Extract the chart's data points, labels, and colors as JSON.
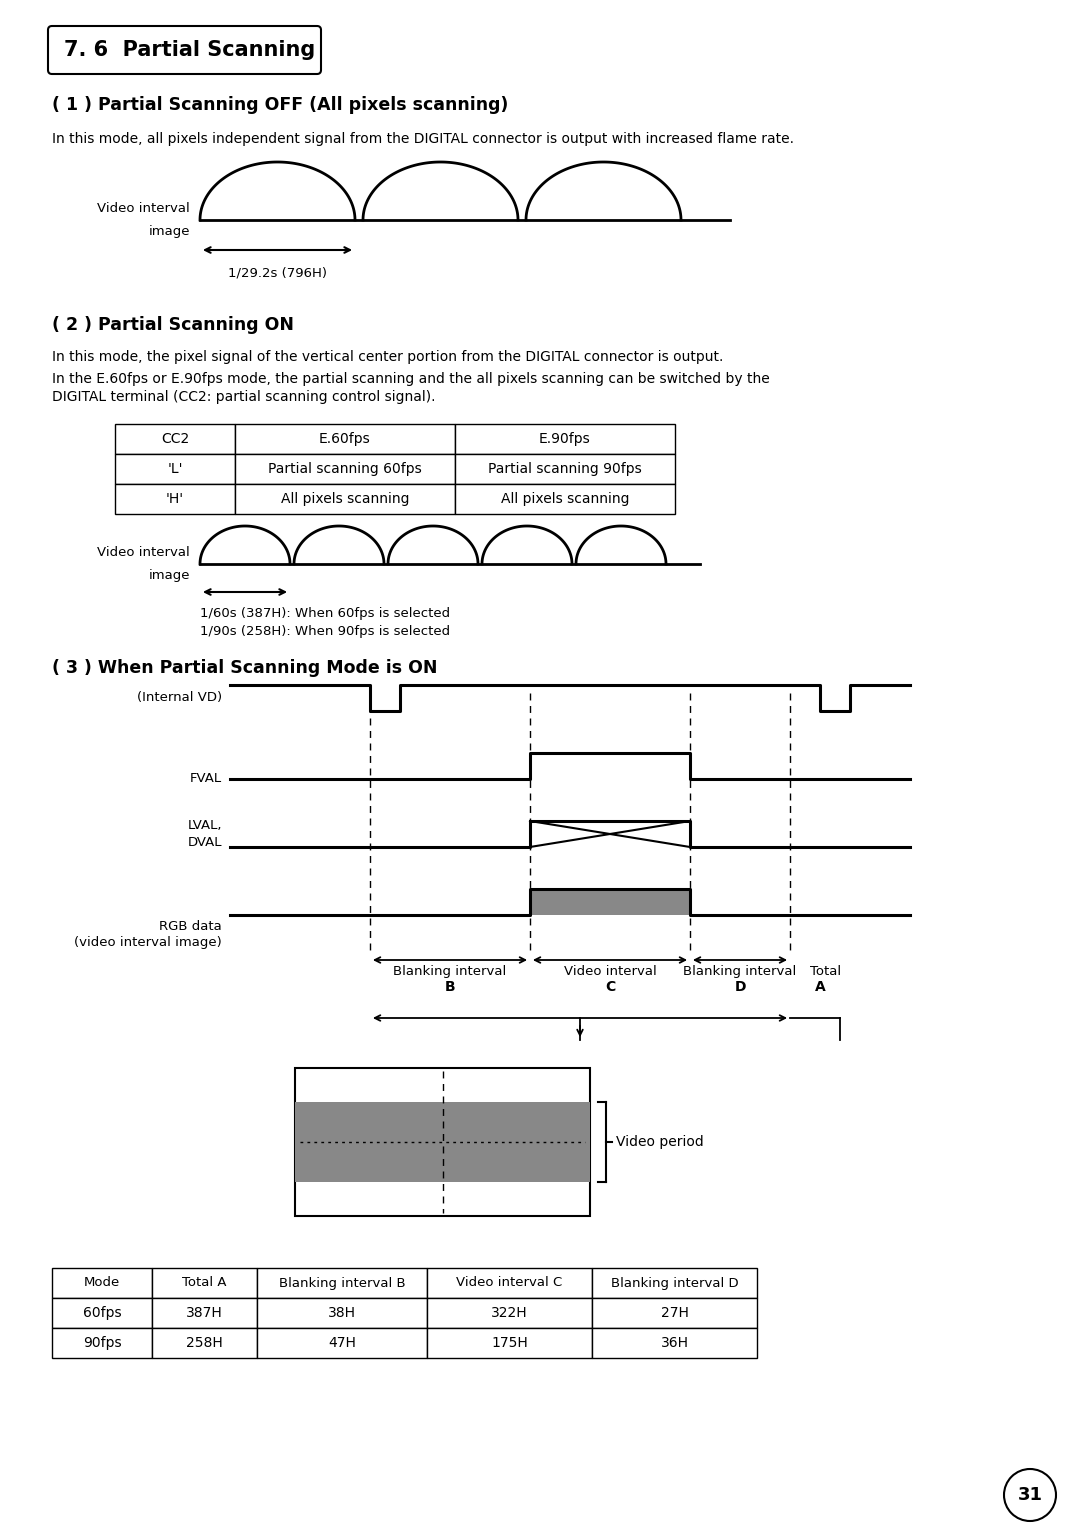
{
  "title": "7. 6  Partial Scanning",
  "section1_title": "( 1 ) Partial Scanning OFF (All pixels scanning)",
  "section1_body": "In this mode, all pixels independent signal from the DIGITAL connector is output with increased flame rate.",
  "section2_title": "( 2 ) Partial Scanning ON",
  "section2_body1": "In this mode, the pixel signal of the vertical center portion from the DIGITAL connector is output.",
  "section2_body2": "In the E.60fps or E.90fps mode, the partial scanning and the all pixels scanning can be switched by the\nDIGITAL terminal (CC2: partial scanning control signal).",
  "table2_headers": [
    "CC2",
    "E.60fps",
    "E.90fps"
  ],
  "table2_rows": [
    [
      "'L'",
      "Partial scanning 60fps",
      "Partial scanning 90fps"
    ],
    [
      "'H'",
      "All pixels scanning",
      "All pixels scanning"
    ]
  ],
  "section2_diag_note1": "1/60s (387H): When 60fps is selected",
  "section2_diag_note2": "1/90s (258H): When 90fps is selected",
  "section3_title": "( 3 ) When Partial Scanning Mode is ON",
  "signal_labels": [
    "(Internal VD)",
    "FVAL",
    "LVAL,\nDVAL",
    "RGB data\n(video interval image)"
  ],
  "table3_headers": [
    "Mode",
    "Total A",
    "Blanking interval B",
    "Video interval C",
    "Blanking interval D"
  ],
  "table3_rows": [
    [
      "60fps",
      "387H",
      "38H",
      "322H",
      "27H"
    ],
    [
      "90fps",
      "258H",
      "47H",
      "175H",
      "36H"
    ]
  ],
  "page_number": "31",
  "bg_color": "#ffffff"
}
